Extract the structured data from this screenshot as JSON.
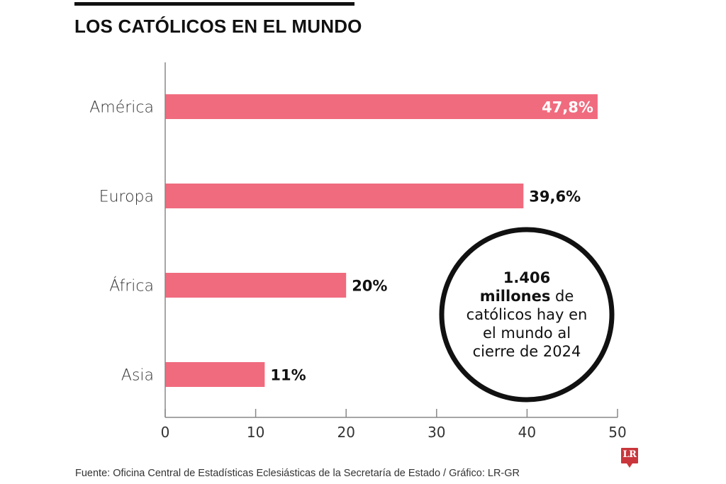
{
  "header": {
    "title": "LOS CATÓLICOS EN EL MUNDO"
  },
  "callout": {
    "number": "1.406",
    "unit": "millones",
    "line2_rest": " de",
    "line3": "católicos hay en",
    "line4": "el mundo al",
    "line5": "cierre de 2024"
  },
  "footer": {
    "source": "Fuente: Oficina Central de Estadísticas Eclesiásticas de la Secretaría de Estado / Gráfico: LR-GR",
    "logo_text": "LR"
  },
  "colors": {
    "bar": "#F06B7E",
    "axis": "#888888",
    "logo": "#C9363B"
  },
  "chart_data": {
    "type": "bar",
    "orientation": "horizontal",
    "title": "LOS CATÓLICOS EN EL MUNDO",
    "categories": [
      "América",
      "Europa",
      "África",
      "Asia"
    ],
    "values": [
      47.8,
      39.6,
      20,
      11
    ],
    "value_labels": [
      "47,8%",
      "39,6%",
      "20%",
      "11%"
    ],
    "xlabel": "",
    "ylabel": "",
    "xlim": [
      0,
      50
    ],
    "xticks": [
      0,
      10,
      20,
      30,
      40,
      50
    ],
    "xtick_labels": [
      "0",
      "10",
      "20",
      "30",
      "40",
      "50"
    ],
    "grid": false,
    "legend": "none"
  }
}
